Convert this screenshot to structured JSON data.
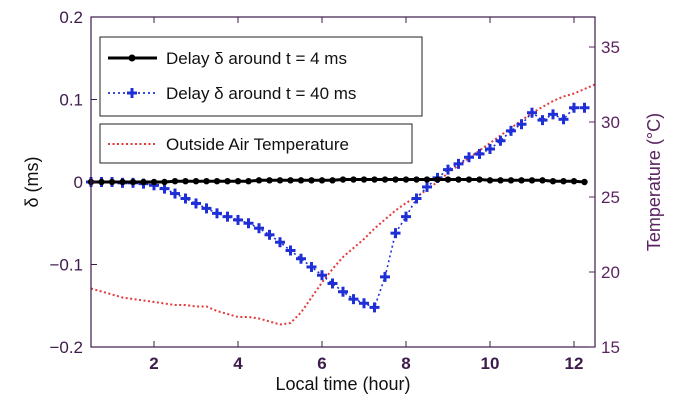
{
  "chart_data": {
    "type": "line",
    "xlabel": "Local time (hour)",
    "ylabel": "δ (ms)",
    "ylabel_right": "Temperature (°C)",
    "xlim": [
      0.5,
      12.5
    ],
    "ylim": [
      -0.2,
      0.2
    ],
    "ylim_right": [
      15,
      37
    ],
    "xticks": [
      2,
      4,
      6,
      8,
      10,
      12
    ],
    "yticks": [
      -0.2,
      -0.1,
      0,
      0.1,
      0.2
    ],
    "yticks_right": [
      15,
      20,
      25,
      30,
      35
    ],
    "grid": false,
    "legend_position": "top-left",
    "series": [
      {
        "name": "Delay δ around t = 4 ms",
        "axis": "left",
        "style": "solid-black-dots",
        "color": "#000000",
        "x": [
          0.5,
          0.75,
          1.0,
          1.25,
          1.5,
          1.75,
          2.0,
          2.25,
          2.5,
          2.75,
          3.0,
          3.25,
          3.5,
          3.75,
          4.0,
          4.25,
          4.5,
          4.75,
          5.0,
          5.25,
          5.5,
          5.75,
          6.0,
          6.25,
          6.5,
          6.75,
          7.0,
          7.25,
          7.5,
          7.75,
          8.0,
          8.25,
          8.5,
          8.75,
          9.0,
          9.25,
          9.5,
          9.75,
          10.0,
          10.25,
          10.5,
          10.75,
          11.0,
          11.25,
          11.5,
          11.75,
          12.0,
          12.25
        ],
        "y": [
          0.0,
          0.0,
          0.0,
          0.0,
          0.0,
          0.0,
          0.0,
          0.0,
          0.001,
          0.001,
          0.001,
          0.001,
          0.001,
          0.001,
          0.001,
          0.001,
          0.002,
          0.002,
          0.002,
          0.002,
          0.002,
          0.002,
          0.002,
          0.002,
          0.003,
          0.003,
          0.003,
          0.003,
          0.003,
          0.003,
          0.003,
          0.003,
          0.003,
          0.003,
          0.003,
          0.003,
          0.003,
          0.003,
          0.002,
          0.002,
          0.002,
          0.002,
          0.002,
          0.002,
          0.001,
          0.001,
          0.001,
          0.0
        ]
      },
      {
        "name": "Delay δ around t = 40 ms",
        "axis": "left",
        "style": "dotted-blue-plus",
        "color": "#1f2fd6",
        "x": [
          0.5,
          0.75,
          1.0,
          1.25,
          1.5,
          1.75,
          2.0,
          2.25,
          2.5,
          2.75,
          3.0,
          3.25,
          3.5,
          3.75,
          4.0,
          4.25,
          4.5,
          4.75,
          5.0,
          5.25,
          5.5,
          5.75,
          6.0,
          6.25,
          6.5,
          6.75,
          7.0,
          7.25,
          7.5,
          7.75,
          8.0,
          8.25,
          8.5,
          8.75,
          9.0,
          9.25,
          9.5,
          9.75,
          10.0,
          10.25,
          10.5,
          10.75,
          11.0,
          11.25,
          11.5,
          11.75,
          12.0,
          12.25
        ],
        "y": [
          0.0,
          0.0,
          0.0,
          -0.001,
          -0.001,
          -0.002,
          -0.004,
          -0.008,
          -0.014,
          -0.02,
          -0.026,
          -0.032,
          -0.038,
          -0.042,
          -0.046,
          -0.05,
          -0.056,
          -0.064,
          -0.073,
          -0.083,
          -0.093,
          -0.103,
          -0.113,
          -0.123,
          -0.133,
          -0.142,
          -0.147,
          -0.152,
          -0.115,
          -0.062,
          -0.042,
          -0.02,
          -0.006,
          0.005,
          0.015,
          0.022,
          0.03,
          0.034,
          0.04,
          0.05,
          0.062,
          0.07,
          0.084,
          0.075,
          0.082,
          0.076,
          0.09,
          0.09
        ]
      },
      {
        "name": "Outside Air Temperature",
        "axis": "right",
        "style": "dotted-red",
        "color": "#e53a3a",
        "x": [
          0.5,
          0.75,
          1.0,
          1.25,
          1.5,
          1.75,
          2.0,
          2.25,
          2.5,
          2.75,
          3.0,
          3.25,
          3.5,
          3.75,
          4.0,
          4.25,
          4.5,
          4.75,
          5.0,
          5.25,
          5.5,
          5.75,
          6.0,
          6.25,
          6.5,
          6.75,
          7.0,
          7.25,
          7.5,
          7.75,
          8.0,
          8.25,
          8.5,
          8.75,
          9.0,
          9.25,
          9.5,
          9.75,
          10.0,
          10.25,
          10.5,
          10.75,
          11.0,
          11.25,
          11.5,
          11.75,
          12.0,
          12.25,
          12.5
        ],
        "y": [
          18.9,
          18.7,
          18.5,
          18.3,
          18.2,
          18.1,
          18.0,
          17.9,
          17.8,
          17.8,
          17.7,
          17.7,
          17.4,
          17.2,
          17.0,
          17.0,
          16.9,
          16.7,
          16.5,
          16.6,
          17.3,
          18.3,
          19.3,
          20.2,
          21.0,
          21.6,
          22.2,
          22.9,
          23.5,
          24.1,
          24.6,
          25.0,
          25.5,
          26.0,
          26.6,
          27.1,
          27.6,
          28.1,
          28.6,
          29.1,
          29.6,
          30.1,
          30.6,
          31.0,
          31.4,
          31.7,
          31.9,
          32.2,
          32.5
        ]
      }
    ]
  }
}
